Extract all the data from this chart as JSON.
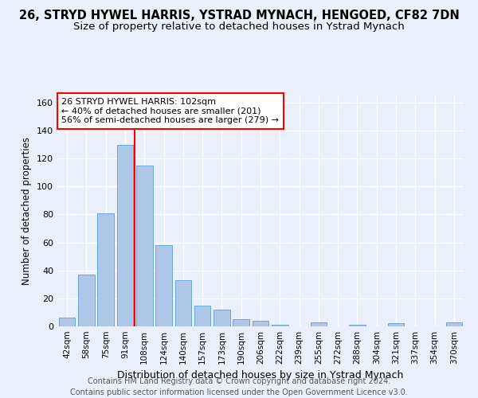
{
  "title1": "26, STRYD HYWEL HARRIS, YSTRAD MYNACH, HENGOED, CF82 7DN",
  "title2": "Size of property relative to detached houses in Ystrad Mynach",
  "xlabel": "Distribution of detached houses by size in Ystrad Mynach",
  "ylabel": "Number of detached properties",
  "categories": [
    "42sqm",
    "58sqm",
    "75sqm",
    "91sqm",
    "108sqm",
    "124sqm",
    "140sqm",
    "157sqm",
    "173sqm",
    "190sqm",
    "206sqm",
    "222sqm",
    "239sqm",
    "255sqm",
    "272sqm",
    "288sqm",
    "304sqm",
    "321sqm",
    "337sqm",
    "354sqm",
    "370sqm"
  ],
  "values": [
    6,
    37,
    81,
    130,
    115,
    58,
    33,
    15,
    12,
    5,
    4,
    1,
    0,
    3,
    0,
    1,
    0,
    2,
    0,
    0,
    3
  ],
  "bar_color": "#aec6e8",
  "bar_edge_color": "#5a9fd4",
  "bg_color": "#eaf0fb",
  "grid_color": "#ffffff",
  "vline_x_index": 3,
  "vline_color": "red",
  "annotation_line1": "26 STRYD HYWEL HARRIS: 102sqm",
  "annotation_line2": "← 40% of detached houses are smaller (201)",
  "annotation_line3": "56% of semi-detached houses are larger (279) →",
  "annotation_box_color": "white",
  "annotation_box_edge_color": "red",
  "ylim": [
    0,
    165
  ],
  "yticks": [
    0,
    20,
    40,
    60,
    80,
    100,
    120,
    140,
    160
  ],
  "footnote": "Contains HM Land Registry data © Crown copyright and database right 2024.\nContains public sector information licensed under the Open Government Licence v3.0.",
  "title1_fontsize": 10.5,
  "title2_fontsize": 9.5,
  "xlabel_fontsize": 9,
  "ylabel_fontsize": 8.5,
  "annotation_fontsize": 8,
  "footnote_fontsize": 7,
  "tick_fontsize": 7.5
}
